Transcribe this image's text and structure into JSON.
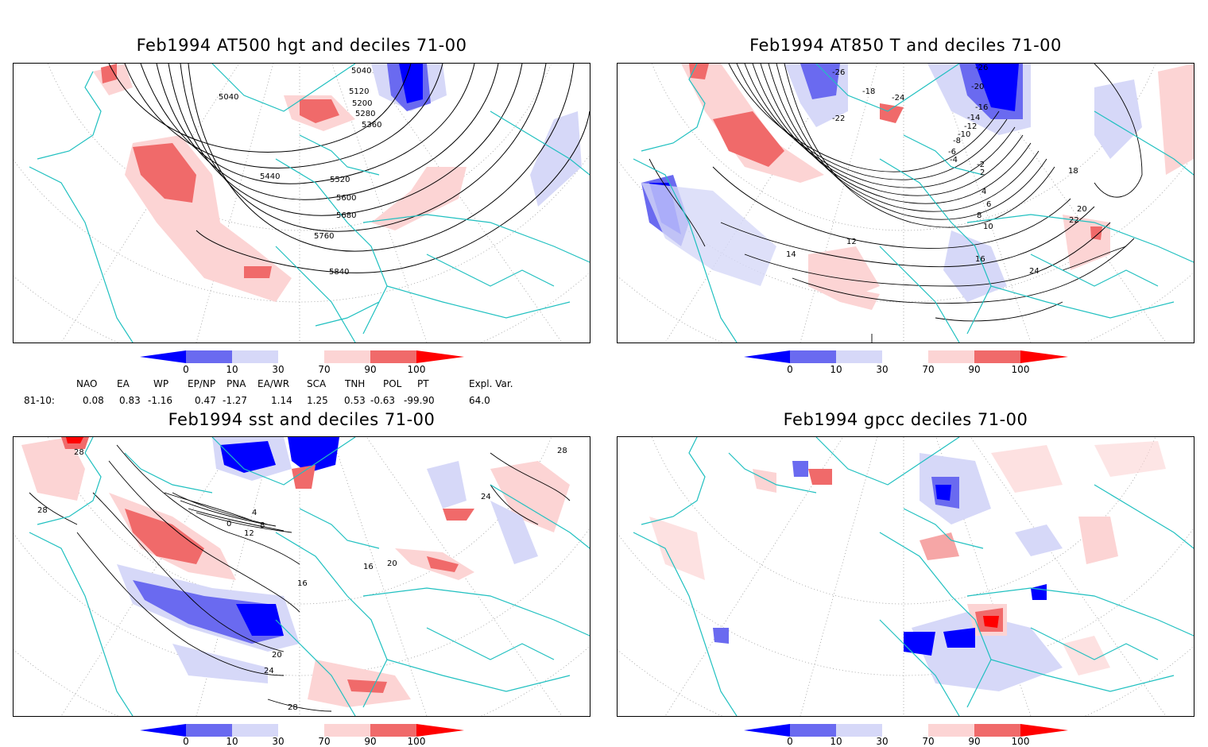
{
  "titles": {
    "p1": "Feb1994 AT500 hgt and deciles 71-00",
    "p2": "Feb1994 AT850 T and deciles 71-00",
    "p3": "Feb1994 sst and deciles 71-00",
    "p4": "Feb1994 gpcc deciles 71-00"
  },
  "colorbar": {
    "labels": [
      "0",
      "10",
      "30",
      "70",
      "90",
      "100"
    ],
    "colors": [
      "#0000ff",
      "#6a6af0",
      "#d6d8f8",
      "#ffffff",
      "#fcd4d4",
      "#f06a6a",
      "#ff0000"
    ]
  },
  "indices": {
    "headers": [
      "NAO",
      "EA",
      "WP",
      "EP/NP",
      "PNA",
      "EA/WR",
      "SCA",
      "TNH",
      "POL",
      "PT",
      "Expl. Var."
    ],
    "row_label": "81-10:",
    "values": [
      "0.08",
      "0.83",
      "-1.16",
      "0.47",
      "-1.27",
      "1.14",
      "1.25",
      "0.53",
      "-0.63",
      "-99.90",
      "64.0"
    ]
  },
  "contour_labels": {
    "p1": [
      "5040",
      "5040",
      "5120",
      "5200",
      "5280",
      "5360",
      "5440",
      "5520",
      "5600",
      "5680",
      "5760",
      "5840"
    ],
    "p2": [
      "-26",
      "-26",
      "-24",
      "-22",
      "-20",
      "-18",
      "-16",
      "-14",
      "-12",
      "-10",
      "-8",
      "-6",
      "-4",
      "-2",
      "2",
      "4",
      "6",
      "8",
      "10",
      "12",
      "14",
      "16",
      "18",
      "20",
      "22",
      "24"
    ],
    "p3": [
      "28",
      "28",
      "28",
      "20",
      "0",
      "4",
      "8",
      "12",
      "16",
      "20",
      "24",
      "24",
      "28",
      "16"
    ]
  },
  "colors": {
    "coast": "#20c0c0",
    "contour": "#000000",
    "grid": "#888888"
  }
}
